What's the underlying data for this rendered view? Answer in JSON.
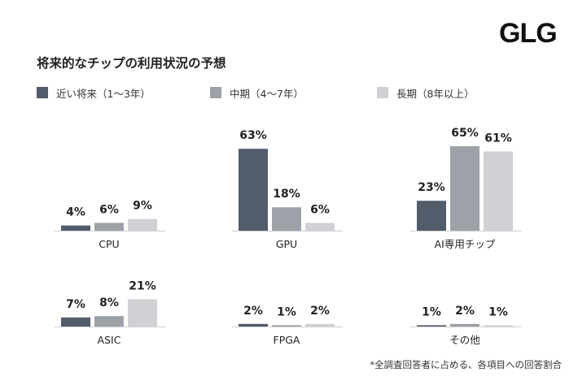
{
  "brand": {
    "logo_text": "GLG"
  },
  "title": "将来的なチップの利用状況の予想",
  "footnote": "*全調査回答者に占める、各項目への回答割合",
  "chart_data": {
    "type": "bar",
    "title": "将来的なチップの利用状況の予想",
    "unit": "%",
    "series": [
      {
        "name": "近い将来（1〜3年）",
        "color": "#525c6b"
      },
      {
        "name": "中期（4〜7年）",
        "color": "#9da1a8"
      },
      {
        "name": "長期（8年以上）",
        "color": "#cfd1d5"
      }
    ],
    "panels": [
      {
        "label": "CPU",
        "values": [
          4,
          6,
          9
        ]
      },
      {
        "label": "GPU",
        "values": [
          63,
          18,
          6
        ]
      },
      {
        "label": "AI専用チップ",
        "values": [
          23,
          65,
          61
        ]
      },
      {
        "label": "ASIC",
        "values": [
          7,
          8,
          21
        ]
      },
      {
        "label": "FPGA",
        "values": [
          2,
          1,
          2
        ]
      },
      {
        "label": "その他",
        "values": [
          1,
          2,
          1
        ]
      }
    ]
  }
}
